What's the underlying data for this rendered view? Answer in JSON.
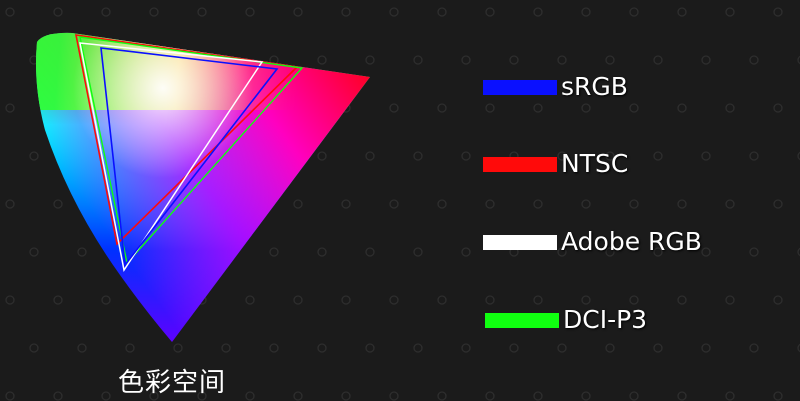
{
  "caption": "色彩空间",
  "legend": [
    {
      "label": "sRGB",
      "color": "#0a10ff"
    },
    {
      "label": "NTSC",
      "color": "#ff0a0a"
    },
    {
      "label": "Adobe RGB",
      "color": "#ffffff"
    },
    {
      "label": "DCI-P3",
      "color": "#10ff10"
    }
  ]
}
